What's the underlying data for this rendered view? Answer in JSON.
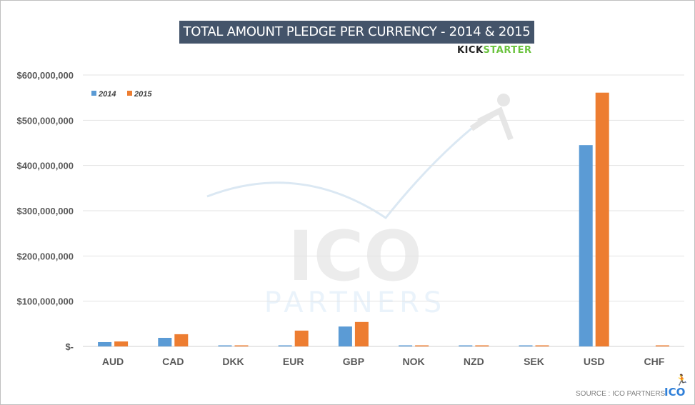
{
  "chart_data": {
    "type": "bar",
    "title": "TOTAL AMOUNT PLEDGE PER CURRENCY - 2014 & 2015",
    "categories": [
      "AUD",
      "CAD",
      "DKK",
      "EUR",
      "GBP",
      "NOK",
      "NZD",
      "SEK",
      "USD",
      "CHF"
    ],
    "series": [
      {
        "name": "2014",
        "color": "#5b9bd5",
        "values": [
          9500000,
          19000000,
          1000000,
          2000000,
          44000000,
          1000000,
          1000000,
          1000000,
          445000000,
          0
        ]
      },
      {
        "name": "2015",
        "color": "#ed7d31",
        "values": [
          11000000,
          27000000,
          1500000,
          35000000,
          54000000,
          1000000,
          1000000,
          2000000,
          561000000,
          1000000
        ]
      }
    ],
    "ylim": [
      0,
      600000000
    ],
    "yticks": [
      0,
      100000000,
      200000000,
      300000000,
      400000000,
      500000000,
      600000000
    ],
    "ytick_labels": [
      "$-",
      "$100,000,000",
      "$200,000,000",
      "$300,000,000",
      "$400,000,000",
      "$500,000,000",
      "$600,000,000"
    ],
    "grid": true,
    "legend_position": "top-left",
    "xlabel": "",
    "ylabel": ""
  },
  "branding": {
    "kickstarter_k": "KICK",
    "kickstarter_s": "STARTER",
    "watermark_top": "ICO",
    "watermark_bottom": "PARTNERS",
    "source": "SOURCE : ICO PARTNERS",
    "ico_logo": "ICO"
  }
}
